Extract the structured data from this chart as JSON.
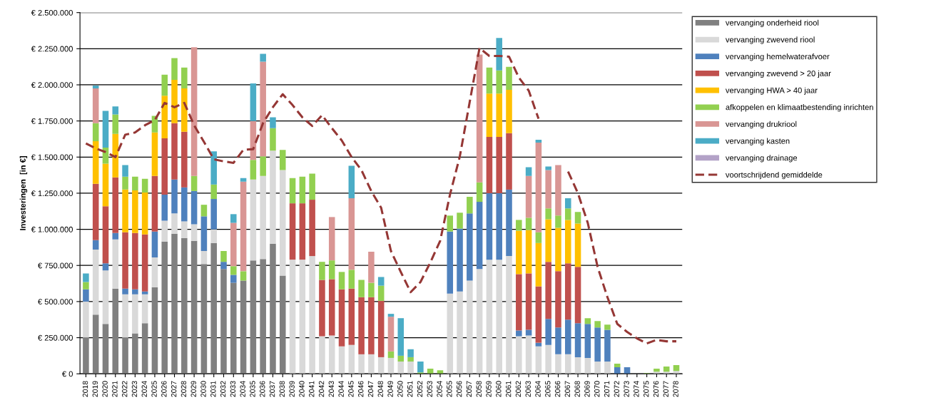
{
  "chart_data": {
    "type": "bar",
    "stacked": true,
    "ylabel": "Investeringen  [in €]",
    "grid": "y",
    "legend": "top right",
    "categories": [
      "2018",
      "2019",
      "2020",
      "2021",
      "2022",
      "2023",
      "2024",
      "2025",
      "2026",
      "2027",
      "2028",
      "2029",
      "2030",
      "2031",
      "2032",
      "2033",
      "2034",
      "2035",
      "2036",
      "2037",
      "2038",
      "2039",
      "2040",
      "2041",
      "2042",
      "2043",
      "2044",
      "2045",
      "2046",
      "2047",
      "2048",
      "2049",
      "2050",
      "2051",
      "2052",
      "2053",
      "2054",
      "2055",
      "2056",
      "2057",
      "2058",
      "2059",
      "2060",
      "2061",
      "2062",
      "2063",
      "2064",
      "2065",
      "2066",
      "2067",
      "2068",
      "2069",
      "2070",
      "2071",
      "2072",
      "2073",
      "2074",
      "2075",
      "2076",
      "2077",
      "2078"
    ],
    "ylim": [
      0,
      2500000
    ],
    "yticks": [
      {
        "value": 0,
        "label": "€ 0"
      },
      {
        "value": 250000,
        "label": "€ 250.000"
      },
      {
        "value": 500000,
        "label": "€ 500.000"
      },
      {
        "value": 750000,
        "label": "€ 750.000"
      },
      {
        "value": 1000000,
        "label": "€ 1.000.000"
      },
      {
        "value": 1250000,
        "label": "€ 1.250.000"
      },
      {
        "value": 1500000,
        "label": "€ 1.500.000"
      },
      {
        "value": 1750000,
        "label": "€ 1.750.000"
      },
      {
        "value": 2000000,
        "label": "€ 2.000.000"
      },
      {
        "value": 2250000,
        "label": "€ 2.250.000"
      },
      {
        "value": 2500000,
        "label": "€ 2.500.000"
      }
    ],
    "series": [
      {
        "name": "vervanging onderheid riool",
        "color": "#808080",
        "values": [
          250000,
          410000,
          345000,
          590000,
          250000,
          280000,
          350000,
          600000,
          915000,
          970000,
          940000,
          920000,
          760000,
          905000,
          725000,
          630000,
          645000,
          785000,
          795000,
          900000,
          680000,
          0,
          0,
          0,
          0,
          0,
          0,
          0,
          0,
          0,
          0,
          0,
          0,
          0,
          0,
          0,
          0,
          0,
          0,
          0,
          0,
          0,
          0,
          0,
          0,
          0,
          0,
          0,
          0,
          0,
          0,
          0,
          0,
          0,
          0,
          0,
          0,
          0,
          0,
          0,
          0
        ]
      },
      {
        "name": "vervanging zwevend riool",
        "color": "#d9d9d9",
        "values": [
          250000,
          450000,
          370000,
          340000,
          300000,
          270000,
          200000,
          205000,
          145000,
          140000,
          115000,
          115000,
          90000,
          95000,
          0,
          0,
          0,
          560000,
          575000,
          645000,
          730000,
          790000,
          790000,
          815000,
          260000,
          265000,
          190000,
          200000,
          135000,
          135000,
          115000,
          110000,
          85000,
          85000,
          0,
          0,
          0,
          555000,
          570000,
          645000,
          725000,
          790000,
          790000,
          815000,
          260000,
          265000,
          190000,
          200000,
          135000,
          135000,
          115000,
          110000,
          85000,
          85000,
          0,
          0,
          0,
          0,
          15000,
          15000,
          20000
        ]
      },
      {
        "name": "vervanging hemelwaterafvoer",
        "color": "#4f81bd",
        "values": [
          85000,
          65000,
          50000,
          45000,
          40000,
          35000,
          20000,
          180000,
          180000,
          235000,
          235000,
          230000,
          240000,
          210000,
          50000,
          55000,
          0,
          0,
          0,
          0,
          0,
          0,
          0,
          0,
          0,
          0,
          0,
          0,
          0,
          0,
          0,
          0,
          0,
          0,
          0,
          0,
          0,
          430000,
          435000,
          465000,
          465000,
          460000,
          460000,
          460000,
          40000,
          40000,
          25000,
          180000,
          185000,
          240000,
          235000,
          235000,
          235000,
          220000,
          45000,
          45000,
          0,
          0,
          0,
          0,
          0
        ]
      },
      {
        "name": "vervanging zwevend > 20 jaar",
        "color": "#c0504d",
        "values": [
          0,
          390000,
          395000,
          385000,
          390000,
          390000,
          395000,
          385000,
          390000,
          390000,
          385000,
          0,
          0,
          0,
          0,
          0,
          0,
          0,
          0,
          0,
          0,
          390000,
          390000,
          390000,
          390000,
          390000,
          395000,
          390000,
          395000,
          395000,
          390000,
          0,
          0,
          0,
          0,
          0,
          0,
          0,
          0,
          0,
          0,
          390000,
          390000,
          390000,
          390000,
          390000,
          390000,
          395000,
          390000,
          390000,
          390000,
          0,
          0,
          0,
          0,
          0,
          0,
          0,
          0,
          0,
          0
        ]
      },
      {
        "name": "vervanging HWA > 40 jaar",
        "color": "#ffc000",
        "values": [
          0,
          295000,
          295000,
          300000,
          295000,
          295000,
          290000,
          300000,
          295000,
          300000,
          300000,
          0,
          0,
          0,
          0,
          0,
          0,
          0,
          0,
          0,
          0,
          0,
          0,
          0,
          0,
          0,
          0,
          0,
          0,
          0,
          0,
          0,
          0,
          0,
          0,
          0,
          0,
          0,
          0,
          0,
          0,
          300000,
          300000,
          300000,
          300000,
          300000,
          300000,
          295000,
          300000,
          300000,
          300000,
          0,
          0,
          0,
          0,
          0,
          0,
          0,
          0,
          0,
          0
        ]
      },
      {
        "name": "afkoppelen en klimaatbestending inrichten",
        "color": "#92d050",
        "values": [
          50000,
          125000,
          110000,
          135000,
          90000,
          95000,
          95000,
          115000,
          145000,
          150000,
          145000,
          105000,
          80000,
          100000,
          75000,
          60000,
          65000,
          135000,
          135000,
          155000,
          140000,
          175000,
          185000,
          180000,
          125000,
          130000,
          120000,
          130000,
          120000,
          100000,
          105000,
          45000,
          40000,
          30000,
          10000,
          35000,
          25000,
          110000,
          110000,
          115000,
          135000,
          180000,
          160000,
          160000,
          75000,
          85000,
          75000,
          75000,
          85000,
          80000,
          80000,
          40000,
          45000,
          35000,
          25000,
          0,
          0,
          5000,
          20000,
          35000,
          40000
        ]
      },
      {
        "name": "vervanging drukriool",
        "color": "#d99694",
        "values": [
          0,
          240000,
          0,
          0,
          0,
          0,
          0,
          0,
          0,
          0,
          0,
          890000,
          0,
          0,
          0,
          300000,
          620000,
          270000,
          655000,
          0,
          0,
          0,
          0,
          0,
          0,
          300000,
          0,
          495000,
          0,
          215000,
          0,
          240000,
          0,
          0,
          0,
          0,
          0,
          0,
          0,
          0,
          885000,
          0,
          0,
          0,
          0,
          290000,
          620000,
          265000,
          350000,
          0,
          0,
          0,
          0,
          0,
          0,
          0,
          0,
          0,
          0,
          0,
          0
        ]
      },
      {
        "name": "vervanging kasten",
        "color": "#4bacc6",
        "values": [
          60000,
          20000,
          255000,
          55000,
          80000,
          0,
          0,
          0,
          0,
          0,
          0,
          0,
          0,
          230000,
          0,
          60000,
          25000,
          260000,
          55000,
          75000,
          0,
          0,
          0,
          0,
          0,
          0,
          0,
          225000,
          0,
          0,
          60000,
          20000,
          260000,
          55000,
          75000,
          0,
          0,
          0,
          0,
          0,
          0,
          0,
          225000,
          0,
          0,
          60000,
          20000,
          25000,
          0,
          70000,
          0,
          0,
          0,
          0,
          0,
          0,
          0,
          0,
          0,
          0,
          0
        ]
      },
      {
        "name": "vervanging drainage",
        "color": "#b3a2c7",
        "values": [
          0,
          0,
          0,
          0,
          0,
          0,
          0,
          0,
          0,
          0,
          0,
          0,
          0,
          0,
          0,
          0,
          0,
          0,
          0,
          0,
          0,
          0,
          0,
          0,
          0,
          0,
          0,
          0,
          0,
          0,
          0,
          0,
          0,
          0,
          0,
          0,
          0,
          0,
          0,
          0,
          0,
          0,
          0,
          0,
          0,
          0,
          0,
          0,
          0,
          0,
          0,
          0,
          0,
          0,
          0,
          0,
          0,
          0,
          0,
          0,
          0
        ]
      },
      {
        "name": "voortschrijdend gemiddelde",
        "color": "#953735",
        "type": "line",
        "line_style": "dashed",
        "marker": "none",
        "values": [
          1595000,
          1560000,
          1535000,
          1500000,
          1655000,
          1670000,
          1720000,
          1755000,
          1875000,
          1845000,
          1875000,
          1720000,
          1605000,
          1485000,
          1470000,
          1460000,
          1550000,
          1555000,
          1735000,
          1845000,
          1935000,
          1860000,
          1775000,
          1715000,
          1790000,
          1700000,
          1615000,
          1500000,
          1410000,
          1265000,
          1150000,
          850000,
          705000,
          565000,
          635000,
          770000,
          920000,
          1240000,
          1505000,
          1880000,
          2255000,
          2200000,
          2200000,
          2195000,
          2050000,
          1960000,
          1765000,
          null,
          null,
          1400000,
          1250000,
          1045000,
          740000,
          530000,
          345000,
          290000,
          245000,
          210000,
          235000,
          225000,
          225000
        ]
      }
    ]
  }
}
